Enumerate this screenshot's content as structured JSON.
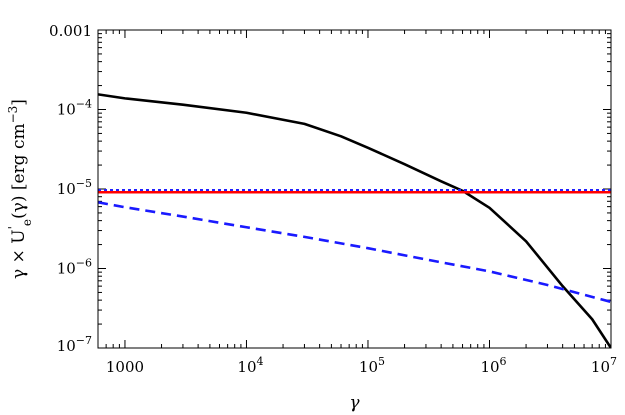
{
  "chart_data": {
    "type": "line",
    "title": "",
    "xlabel": "γ",
    "ylabel": {
      "prefix": "γ × U",
      "prime": "'",
      "sub": "e",
      "arg": "(γ) [erg cm",
      "sup": "−3",
      "close": "]"
    },
    "x_scale": "log",
    "y_scale": "log",
    "xlim": [
      600,
      10000000
    ],
    "ylim": [
      1e-07,
      0.001
    ],
    "grid": false,
    "legend": "none",
    "x_ticks": [
      {
        "value": 1000,
        "base": "1000",
        "exp": ""
      },
      {
        "value": 10000,
        "base": "10",
        "exp": "4"
      },
      {
        "value": 100000,
        "base": "10",
        "exp": "5"
      },
      {
        "value": 1000000,
        "base": "10",
        "exp": "6"
      },
      {
        "value": 10000000,
        "base": "10",
        "exp": "7"
      }
    ],
    "y_ticks": [
      {
        "value": 0.001,
        "base": "0.001",
        "exp": ""
      },
      {
        "value": 0.0001,
        "base": "10",
        "exp": "−4"
      },
      {
        "value": 1e-05,
        "base": "10",
        "exp": "−5"
      },
      {
        "value": 1e-06,
        "base": "10",
        "exp": "−6"
      },
      {
        "value": 1e-07,
        "base": "10",
        "exp": "−7"
      }
    ],
    "series": [
      {
        "color": "#000000",
        "style": "solid",
        "x": [
          600,
          1000,
          3000,
          10000,
          30000,
          60000,
          100000,
          200000,
          400000,
          600000,
          1000000,
          2000000,
          4000000,
          7000000,
          10000000
        ],
        "y": [
          0.000155,
          0.000138,
          0.000115,
          9.1e-05,
          6.6e-05,
          4.6e-05,
          3.3e-05,
          2.05e-05,
          1.25e-05,
          9.5e-06,
          5.8e-06,
          2.2e-06,
          6e-07,
          2.3e-07,
          1e-07
        ]
      },
      {
        "color": "#2020ff",
        "style": "dotted",
        "x": [
          600,
          10000000
        ],
        "y": [
          9.7e-06,
          9.7e-06
        ]
      },
      {
        "color": "#ff0000",
        "style": "solid",
        "x": [
          600,
          10000000
        ],
        "y": [
          9.1e-06,
          9.1e-06
        ]
      },
      {
        "color": "#1a1aff",
        "style": "dashed",
        "x": [
          600,
          1000,
          3000,
          10000,
          30000,
          100000,
          300000,
          1000000,
          3000000,
          10000000
        ],
        "y": [
          6.8e-06,
          5.9e-06,
          4.5e-06,
          3.3e-06,
          2.5e-06,
          1.8e-06,
          1.3e-06,
          9.2e-07,
          6.2e-07,
          3.8e-07
        ]
      }
    ]
  }
}
